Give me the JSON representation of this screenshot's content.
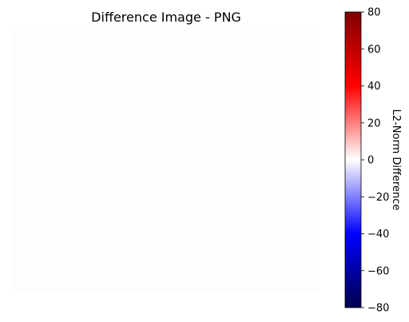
{
  "chart_data": {
    "type": "heatmap",
    "title": "Difference Image - PNG",
    "colorbar": {
      "label": "L2-Norm Difference",
      "range": [
        -80,
        80
      ],
      "ticks": [
        80,
        60,
        40,
        20,
        0,
        -20,
        -40,
        -60,
        -80
      ],
      "tick_labels": [
        "80",
        "60",
        "40",
        "20",
        "0",
        "−20",
        "−40",
        "−60",
        "−80"
      ],
      "colormap": "seismic",
      "colors": [
        "#00004c",
        "#0000ff",
        "#ffffff",
        "#ff0000",
        "#800000"
      ]
    },
    "image_fill_color": "#fffcfd",
    "axes_visible": false,
    "grid": false
  }
}
